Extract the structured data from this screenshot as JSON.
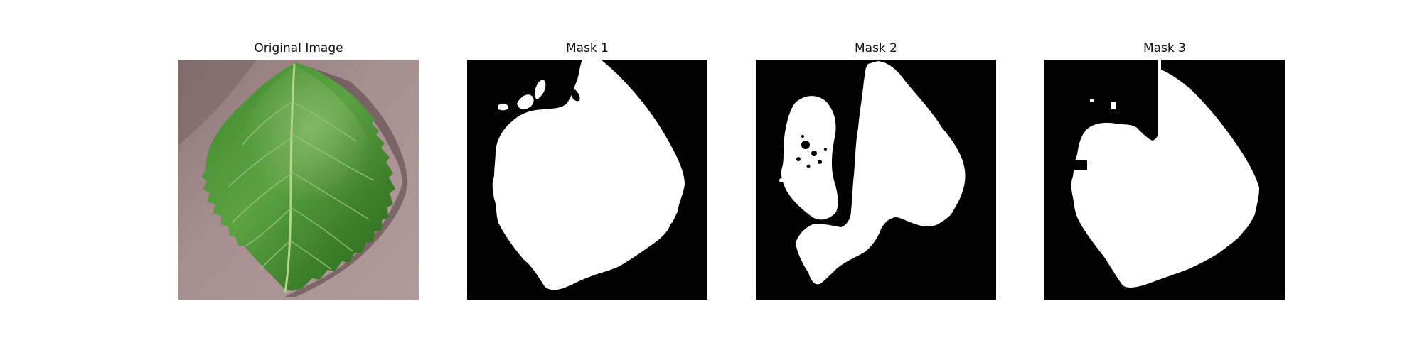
{
  "panels": [
    {
      "title": "Original Image",
      "kind": "photo",
      "subject": "leaf"
    },
    {
      "title": "Mask 1",
      "kind": "mask"
    },
    {
      "title": "Mask 2",
      "kind": "mask"
    },
    {
      "title": "Mask 3",
      "kind": "mask"
    }
  ],
  "colors": {
    "background": "#ffffff",
    "title_text": "#111111",
    "mask_background": "#000000",
    "mask_foreground": "#ffffff",
    "photo_backdrop": "#9c8486",
    "leaf_dark": "#2f6f22",
    "leaf_mid": "#4f9438",
    "leaf_light": "#7fb563",
    "vein": "#a9cf82"
  }
}
